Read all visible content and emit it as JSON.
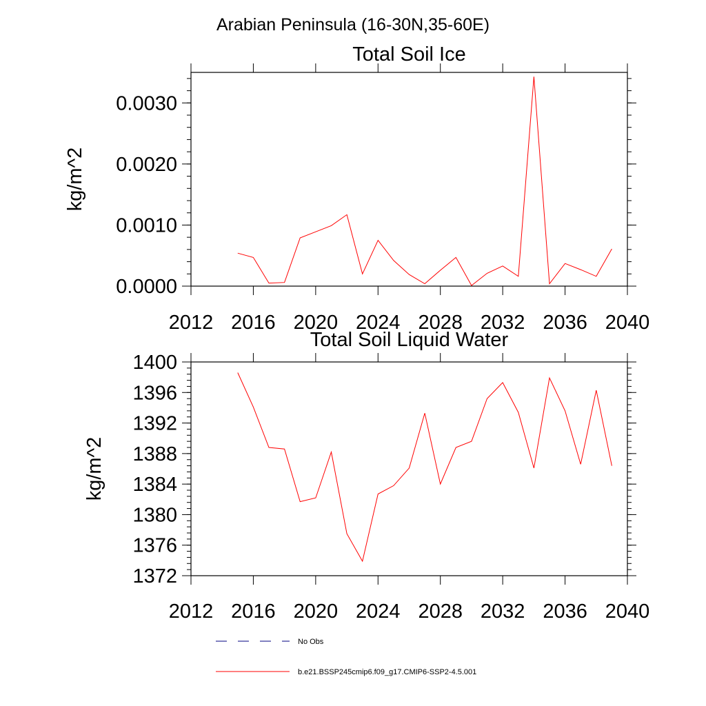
{
  "figure": {
    "suptitle": "Arabian Peninsula (16-30N,35-60E)"
  },
  "chart_data": [
    {
      "type": "line",
      "title": "Total Soil Ice",
      "xlabel": "",
      "ylabel": "kg/m^2",
      "xlim": [
        2012,
        2040
      ],
      "ylim": [
        0.0,
        0.0035
      ],
      "xticks": [
        2012,
        2016,
        2020,
        2024,
        2028,
        2032,
        2036,
        2040
      ],
      "yticks": [
        0.0,
        0.001,
        0.002,
        0.003
      ],
      "ytick_labels": [
        "0.0000",
        "0.0010",
        "0.0020",
        "0.0030"
      ],
      "grid": false,
      "series": [
        {
          "name": "b.e21.BSSP245cmip6.f09_g17.CMIP6-SSP2-4.5.001",
          "color": "#ff0000",
          "x": [
            2015,
            2016,
            2017,
            2018,
            2019,
            2020,
            2021,
            2022,
            2023,
            2024,
            2025,
            2026,
            2027,
            2028,
            2029,
            2030,
            2031,
            2032,
            2033,
            2034,
            2035,
            2036,
            2037,
            2038,
            2039
          ],
          "y": [
            0.00054,
            0.00047,
            5e-05,
            6e-05,
            0.00079,
            0.00089,
            0.00099,
            0.00117,
            0.0002,
            0.00075,
            0.00042,
            0.00019,
            4e-05,
            0.00026,
            0.00047,
            1e-05,
            0.00021,
            0.00033,
            0.00016,
            0.00343,
            4e-05,
            0.00037,
            0.00027,
            0.00016,
            0.00061
          ]
        }
      ]
    },
    {
      "type": "line",
      "title": "Total Soil Liquid Water",
      "xlabel": "",
      "ylabel": "kg/m^2",
      "xlim": [
        2012,
        2040
      ],
      "ylim": [
        1372,
        1400
      ],
      "xticks": [
        2012,
        2016,
        2020,
        2024,
        2028,
        2032,
        2036,
        2040
      ],
      "yticks": [
        1372,
        1376,
        1380,
        1384,
        1388,
        1392,
        1396,
        1400
      ],
      "ytick_labels": [
        "1372",
        "1376",
        "1380",
        "1384",
        "1388",
        "1392",
        "1396",
        "1400"
      ],
      "grid": false,
      "series": [
        {
          "name": "b.e21.BSSP245cmip6.f09_g17.CMIP6-SSP2-4.5.001",
          "color": "#ff0000",
          "x": [
            2015,
            2016,
            2017,
            2018,
            2019,
            2020,
            2021,
            2022,
            2023,
            2024,
            2025,
            2026,
            2027,
            2028,
            2029,
            2030,
            2031,
            2032,
            2033,
            2034,
            2035,
            2036,
            2037,
            2038,
            2039
          ],
          "y": [
            1398.6,
            1394.1,
            1388.8,
            1388.6,
            1381.7,
            1382.2,
            1388.2,
            1377.5,
            1373.9,
            1382.7,
            1383.8,
            1386.1,
            1393.3,
            1384.0,
            1388.8,
            1389.6,
            1395.2,
            1397.3,
            1393.4,
            1386.1,
            1397.9,
            1393.6,
            1386.6,
            1396.3,
            1386.4
          ]
        }
      ]
    }
  ],
  "legend": {
    "placement": "bottom-left",
    "entries": [
      {
        "label": "No Obs",
        "style": "dashed",
        "color": "#000080"
      },
      {
        "label": "b.e21.BSSP245cmip6.f09_g17.CMIP6-SSP2-4.5.001",
        "style": "solid",
        "color": "#ff0000"
      }
    ]
  }
}
